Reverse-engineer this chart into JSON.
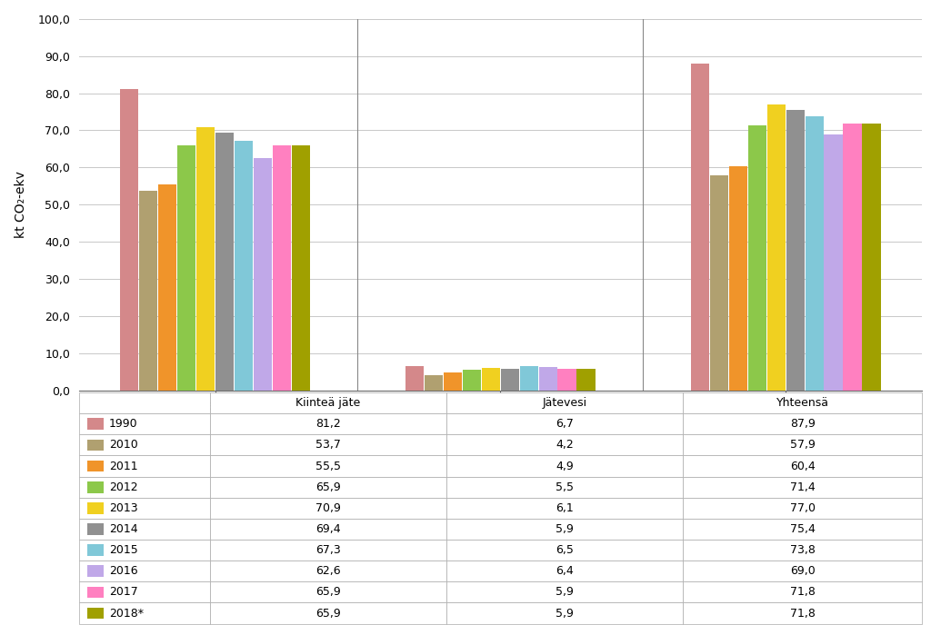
{
  "categories": [
    "Kiinteä jäte",
    "Jätevesi",
    "Yhteensä"
  ],
  "years": [
    "1990",
    "2010",
    "2011",
    "2012",
    "2013",
    "2014",
    "2015",
    "2016",
    "2017",
    "2018*"
  ],
  "colors": [
    "#D4888A",
    "#B0A070",
    "#F0942A",
    "#8CC84A",
    "#F0D020",
    "#909090",
    "#80C8D8",
    "#C0A8E8",
    "#FF80C0",
    "#A0A000"
  ],
  "values_kiintea": [
    81.2,
    53.7,
    55.5,
    65.9,
    70.9,
    69.4,
    67.3,
    62.6,
    65.9,
    65.9
  ],
  "values_jatevesi": [
    6.7,
    4.2,
    4.9,
    5.5,
    6.1,
    5.9,
    6.5,
    6.4,
    5.9,
    5.9
  ],
  "values_yhteensa": [
    87.9,
    57.9,
    60.4,
    71.4,
    77.0,
    75.4,
    73.8,
    69.0,
    71.8,
    71.8
  ],
  "ylabel": "kt CO₂-ekv",
  "ylim": [
    0,
    100
  ],
  "yticks": [
    0.0,
    10.0,
    20.0,
    30.0,
    40.0,
    50.0,
    60.0,
    70.0,
    80.0,
    90.0,
    100.0
  ],
  "col_headers": [
    "Kiinteä jäte",
    "Jätevesi",
    "Yhteensä"
  ],
  "table_rows": [
    [
      "1990",
      "81,2",
      "6,7",
      "87,9"
    ],
    [
      "2010",
      "53,7",
      "4,2",
      "57,9"
    ],
    [
      "2011",
      "55,5",
      "4,9",
      "60,4"
    ],
    [
      "2012",
      "65,9",
      "5,5",
      "71,4"
    ],
    [
      "2013",
      "70,9",
      "6,1",
      "77,0"
    ],
    [
      "2014",
      "69,4",
      "5,9",
      "75,4"
    ],
    [
      "2015",
      "67,3",
      "6,5",
      "73,8"
    ],
    [
      "2016",
      "62,6",
      "6,4",
      "69,0"
    ],
    [
      "2017",
      "65,9",
      "5,9",
      "71,8"
    ],
    [
      "2018*",
      "65,9",
      "5,9",
      "71,8"
    ]
  ],
  "bg_color": "#FFFFFF",
  "grid_color": "#C8C8C8",
  "table_line_color": "#AAAAAA"
}
